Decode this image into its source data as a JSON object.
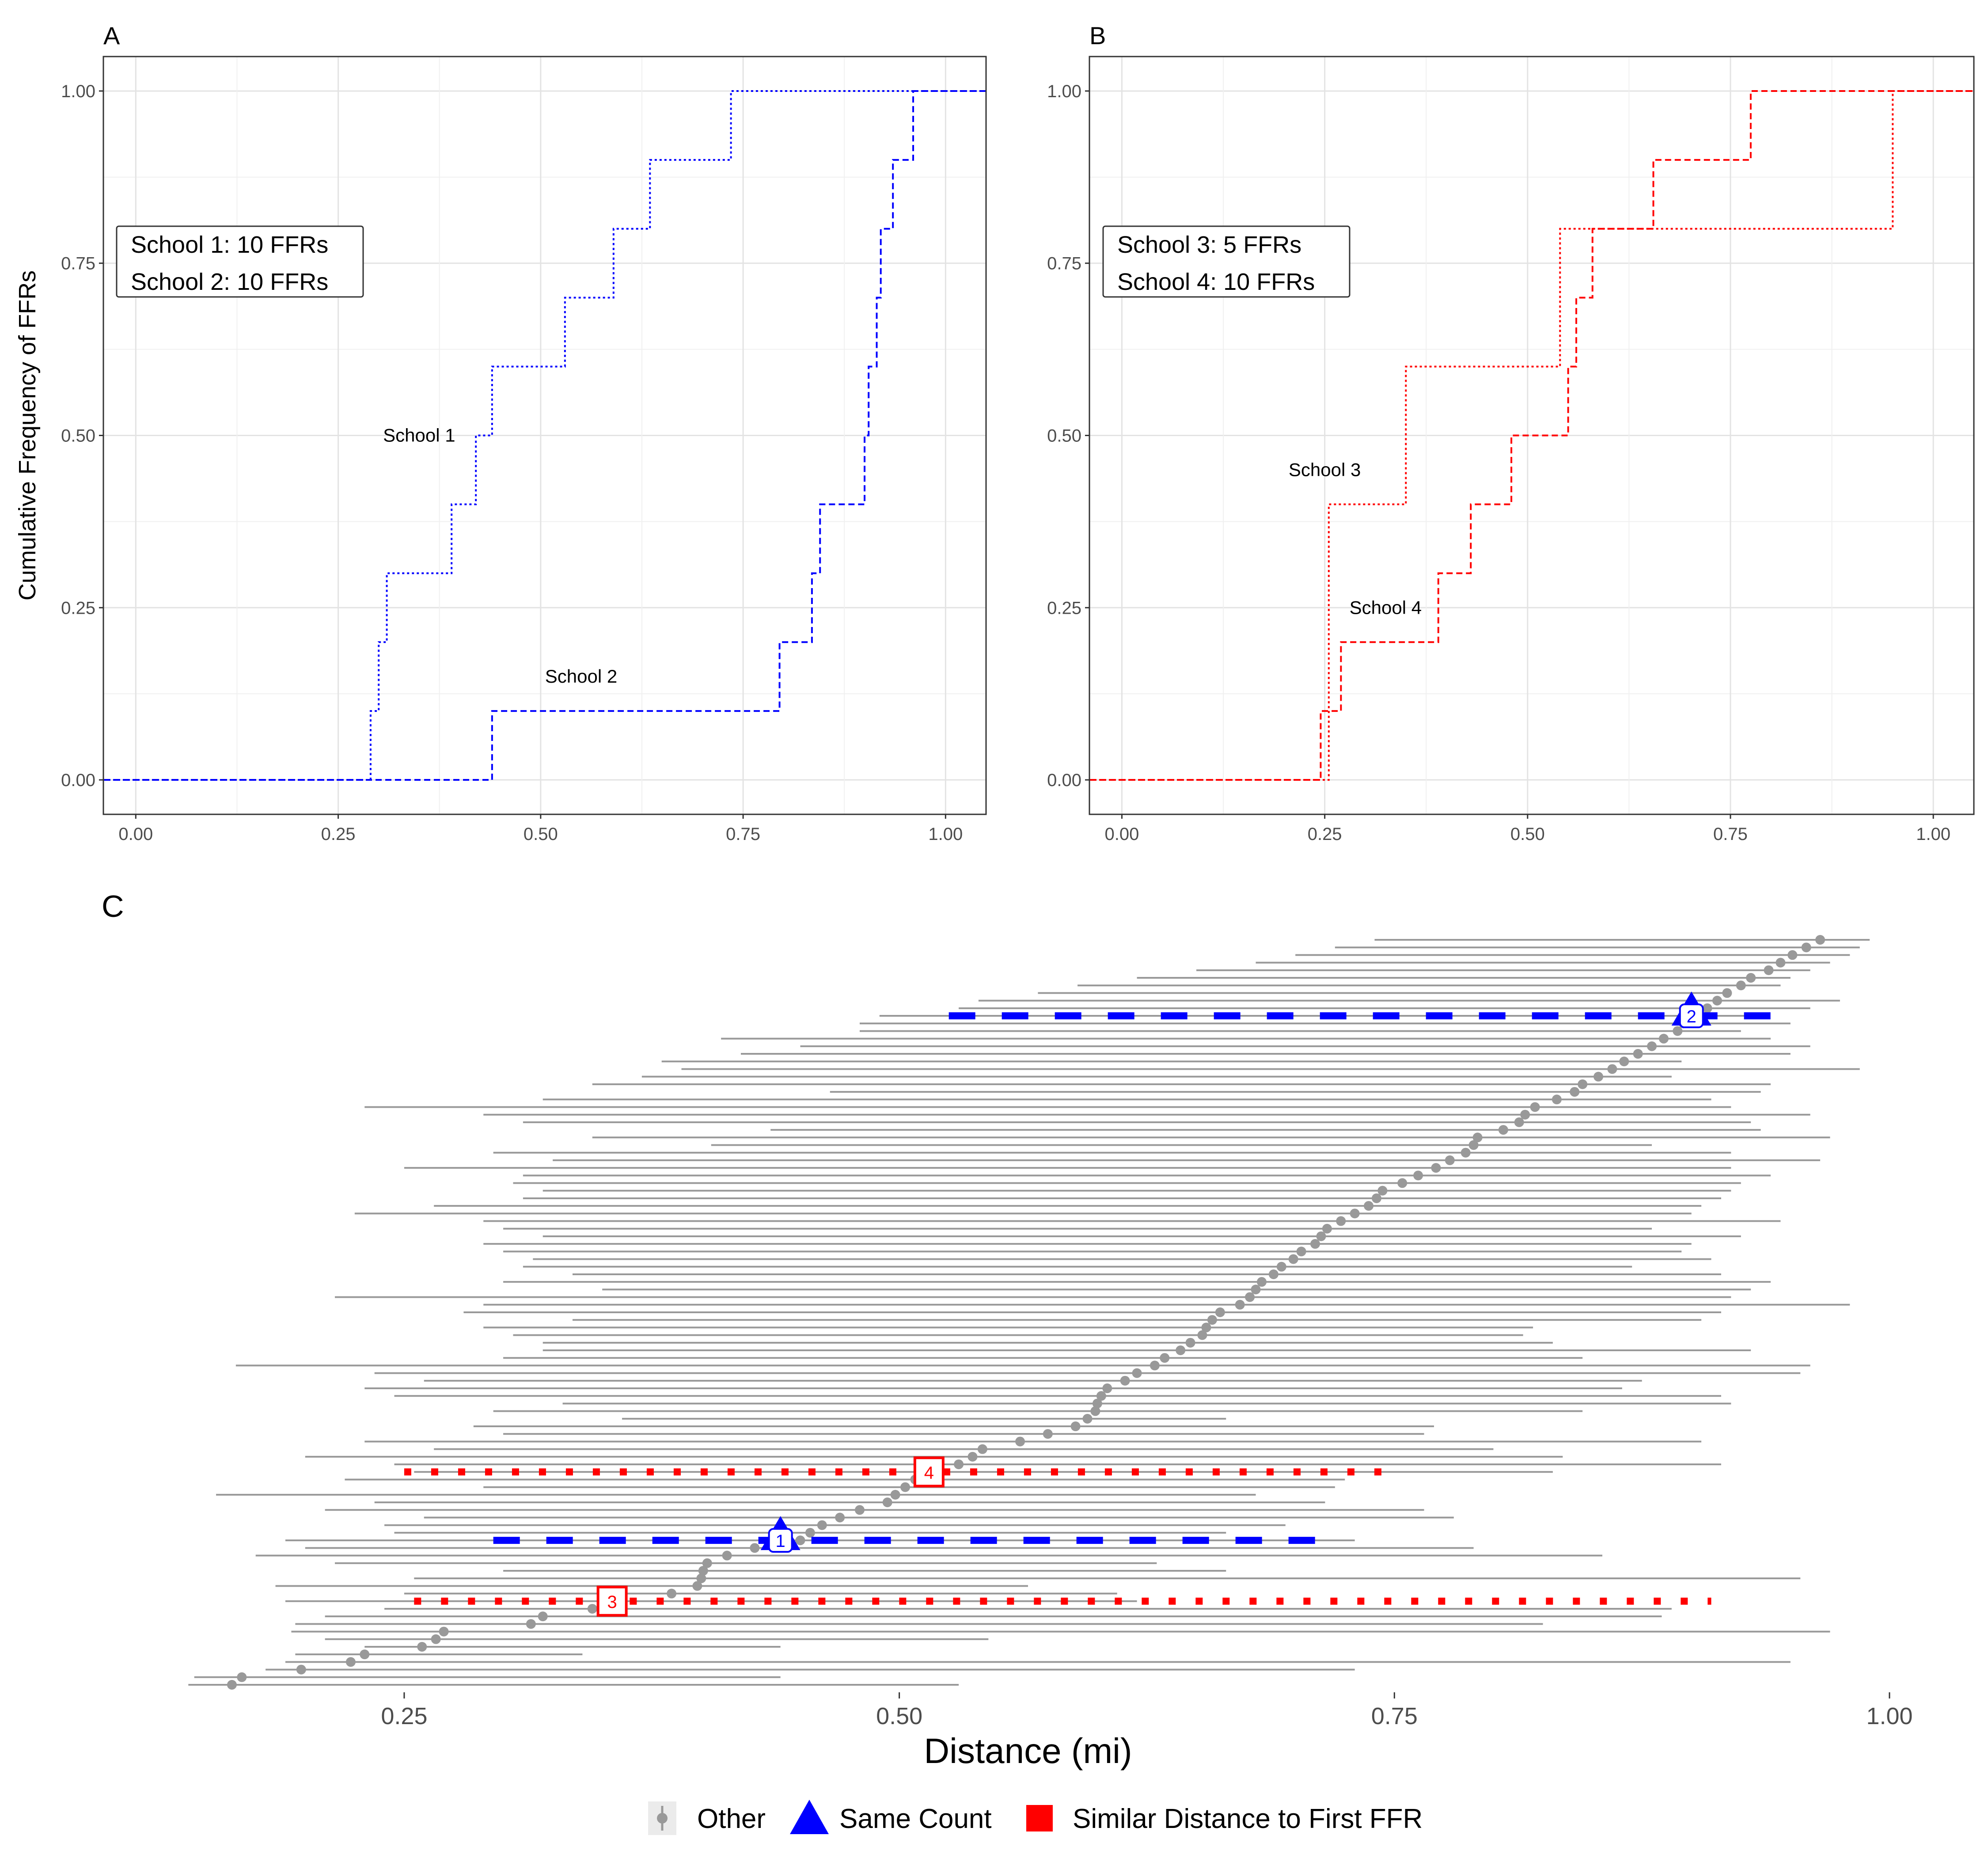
{
  "chart_data": [
    {
      "panel": "A",
      "type": "line",
      "step": true,
      "ylabel": "Cumulative Frequency of FFRs",
      "xlim": [
        -0.04,
        1.05
      ],
      "ylim": [
        -0.05,
        1.05
      ],
      "x_ticks": [
        "0.00",
        "0.25",
        "0.50",
        "0.75",
        "1.00"
      ],
      "y_ticks": [
        "0.00",
        "0.25",
        "0.50",
        "0.75",
        "1.00"
      ],
      "grid": true,
      "legend_box": [
        "School 1: 10 FFRs",
        "School 2: 10 FFRs"
      ],
      "series": [
        {
          "name": "School 1",
          "color": "#0000ff",
          "linestyle": "dotted",
          "x": [
            0.29,
            0.3,
            0.31,
            0.39,
            0.42,
            0.44,
            0.53,
            0.59,
            0.635,
            0.735
          ],
          "y": [
            0.1,
            0.2,
            0.3,
            0.4,
            0.5,
            0.6,
            0.7,
            0.8,
            0.9,
            1.0
          ]
        },
        {
          "name": "School 2",
          "color": "#0000ff",
          "linestyle": "dashed",
          "x": [
            0.44,
            0.795,
            0.835,
            0.845,
            0.9,
            0.905,
            0.915,
            0.92,
            0.935,
            0.96
          ],
          "y": [
            0.1,
            0.2,
            0.3,
            0.4,
            0.5,
            0.6,
            0.7,
            0.8,
            0.9,
            1.0
          ]
        }
      ],
      "annotations": [
        "School 1",
        "School 2"
      ]
    },
    {
      "panel": "B",
      "type": "line",
      "step": true,
      "ylabel": "",
      "xlim": [
        -0.04,
        1.05
      ],
      "ylim": [
        -0.05,
        1.05
      ],
      "x_ticks": [
        "0.00",
        "0.25",
        "0.50",
        "0.75",
        "1.00"
      ],
      "y_ticks": [
        "0.00",
        "0.25",
        "0.50",
        "0.75",
        "1.00"
      ],
      "grid": true,
      "legend_box": [
        "School 3:  5  FFRs",
        "School 4: 10 FFRs"
      ],
      "series": [
        {
          "name": "School 3",
          "color": "#ff0000",
          "linestyle": "dotted",
          "x": [
            0.255,
            0.35,
            0.54,
            0.95
          ],
          "y": [
            0.4,
            0.6,
            0.8,
            1.0
          ]
        },
        {
          "name": "School 4",
          "color": "#ff0000",
          "linestyle": "dashed",
          "x": [
            0.245,
            0.27,
            0.39,
            0.43,
            0.48,
            0.55,
            0.56,
            0.58,
            0.655,
            0.775
          ],
          "y": [
            0.1,
            0.2,
            0.3,
            0.4,
            0.5,
            0.6,
            0.7,
            0.8,
            0.9,
            1.0
          ]
        }
      ],
      "annotations": [
        "School 3",
        "School 4"
      ]
    },
    {
      "panel": "C",
      "type": "scatter",
      "xlabel": "Distance (mi)",
      "xlim": [
        0.13,
        1.0
      ],
      "x_ticks": [
        "0.25",
        "0.50",
        "0.75",
        "1.00"
      ],
      "grid": false,
      "legend": [
        "Other",
        "Same Count",
        "Similar Distance to First FFR"
      ],
      "legend_placement": "bottom",
      "other_color": "#999999",
      "highlighted": [
        {
          "label": "1",
          "group": "Same Count",
          "color": "#0000ff",
          "linestyle": "dashed",
          "center": 0.44,
          "low": 0.295,
          "high": 0.715
        },
        {
          "label": "2",
          "group": "Same Count",
          "color": "#0000ff",
          "linestyle": "dashed",
          "center": 0.9,
          "low": 0.525,
          "high": 0.95
        },
        {
          "label": "3",
          "group": "Similar Distance to First FFR",
          "color": "#ff0000",
          "linestyle": "dotted",
          "center": 0.355,
          "low": 0.255,
          "high": 0.91
        },
        {
          "label": "4",
          "group": "Similar Distance to First FFR",
          "color": "#ff0000",
          "linestyle": "dotted",
          "center": 0.515,
          "low": 0.25,
          "high": 0.745
        }
      ],
      "other_intervals": [
        {
          "c": 0.163,
          "lo": 0.141,
          "hi": 0.53
        },
        {
          "c": 0.168,
          "lo": 0.144,
          "hi": 0.44
        },
        {
          "c": 0.198,
          "lo": 0.18,
          "hi": 0.73
        },
        {
          "c": 0.223,
          "lo": 0.19,
          "hi": 0.95
        },
        {
          "c": 0.23,
          "lo": 0.195,
          "hi": 0.34
        },
        {
          "c": 0.259,
          "lo": 0.23,
          "hi": 0.44
        },
        {
          "c": 0.266,
          "lo": 0.21,
          "hi": 0.545
        },
        {
          "c": 0.27,
          "lo": 0.193,
          "hi": 0.97
        },
        {
          "c": 0.314,
          "lo": 0.195,
          "hi": 0.825
        },
        {
          "c": 0.32,
          "lo": 0.21,
          "hi": 0.885
        },
        {
          "c": 0.345,
          "lo": 0.24,
          "hi": 0.89
        },
        {
          "c": 0.356,
          "lo": 0.19,
          "hi": 0.62
        },
        {
          "c": 0.385,
          "lo": 0.25,
          "hi": 0.61
        },
        {
          "c": 0.398,
          "lo": 0.185,
          "hi": 0.565
        },
        {
          "c": 0.4,
          "lo": 0.255,
          "hi": 0.955
        },
        {
          "c": 0.401,
          "lo": 0.3,
          "hi": 0.665
        },
        {
          "c": 0.403,
          "lo": 0.215,
          "hi": 0.63
        },
        {
          "c": 0.413,
          "lo": 0.175,
          "hi": 0.855
        },
        {
          "c": 0.427,
          "lo": 0.2,
          "hi": 0.79
        },
        {
          "c": 0.45,
          "lo": 0.19,
          "hi": 0.73
        },
        {
          "c": 0.455,
          "lo": 0.245,
          "hi": 0.665
        },
        {
          "c": 0.461,
          "lo": 0.24,
          "hi": 0.695
        },
        {
          "c": 0.47,
          "lo": 0.26,
          "hi": 0.78
        },
        {
          "c": 0.48,
          "lo": 0.21,
          "hi": 0.765
        },
        {
          "c": 0.494,
          "lo": 0.235,
          "hi": 0.715
        },
        {
          "c": 0.498,
          "lo": 0.155,
          "hi": 0.68
        },
        {
          "c": 0.503,
          "lo": 0.29,
          "hi": 0.72
        },
        {
          "c": 0.508,
          "lo": 0.22,
          "hi": 0.725
        },
        {
          "c": 0.521,
          "lo": 0.255,
          "hi": 0.83
        },
        {
          "c": 0.53,
          "lo": 0.245,
          "hi": 0.915
        },
        {
          "c": 0.537,
          "lo": 0.2,
          "hi": 0.835
        },
        {
          "c": 0.542,
          "lo": 0.265,
          "hi": 0.8
        },
        {
          "c": 0.561,
          "lo": 0.23,
          "hi": 0.905
        },
        {
          "c": 0.575,
          "lo": 0.3,
          "hi": 0.765
        },
        {
          "c": 0.589,
          "lo": 0.285,
          "hi": 0.77
        },
        {
          "c": 0.595,
          "lo": 0.36,
          "hi": 0.665
        },
        {
          "c": 0.599,
          "lo": 0.295,
          "hi": 0.845
        },
        {
          "c": 0.6,
          "lo": 0.33,
          "hi": 0.92
        },
        {
          "c": 0.602,
          "lo": 0.245,
          "hi": 0.915
        },
        {
          "c": 0.605,
          "lo": 0.23,
          "hi": 0.865
        },
        {
          "c": 0.614,
          "lo": 0.26,
          "hi": 0.875
        },
        {
          "c": 0.62,
          "lo": 0.235,
          "hi": 0.955
        },
        {
          "c": 0.629,
          "lo": 0.165,
          "hi": 0.96
        },
        {
          "c": 0.634,
          "lo": 0.3,
          "hi": 0.845
        },
        {
          "c": 0.642,
          "lo": 0.32,
          "hi": 0.93
        },
        {
          "c": 0.647,
          "lo": 0.32,
          "hi": 0.83
        },
        {
          "c": 0.653,
          "lo": 0.305,
          "hi": 0.815
        },
        {
          "c": 0.655,
          "lo": 0.29,
          "hi": 0.82
        },
        {
          "c": 0.658,
          "lo": 0.335,
          "hi": 0.905
        },
        {
          "c": 0.662,
          "lo": 0.28,
          "hi": 0.915
        },
        {
          "c": 0.672,
          "lo": 0.29,
          "hi": 0.98
        },
        {
          "c": 0.677,
          "lo": 0.215,
          "hi": 0.92
        },
        {
          "c": 0.68,
          "lo": 0.35,
          "hi": 0.93
        },
        {
          "c": 0.683,
          "lo": 0.3,
          "hi": 0.94
        },
        {
          "c": 0.689,
          "lo": 0.335,
          "hi": 0.915
        },
        {
          "c": 0.693,
          "lo": 0.31,
          "hi": 0.87
        },
        {
          "c": 0.699,
          "lo": 0.315,
          "hi": 0.91
        },
        {
          "c": 0.703,
          "lo": 0.3,
          "hi": 0.895
        },
        {
          "c": 0.71,
          "lo": 0.29,
          "hi": 0.9
        },
        {
          "c": 0.713,
          "lo": 0.32,
          "hi": 0.925
        },
        {
          "c": 0.716,
          "lo": 0.3,
          "hi": 0.88
        },
        {
          "c": 0.723,
          "lo": 0.29,
          "hi": 0.945
        },
        {
          "c": 0.73,
          "lo": 0.225,
          "hi": 0.9
        },
        {
          "c": 0.737,
          "lo": 0.265,
          "hi": 0.905
        },
        {
          "c": 0.741,
          "lo": 0.31,
          "hi": 0.915
        },
        {
          "c": 0.744,
          "lo": 0.32,
          "hi": 0.92
        },
        {
          "c": 0.754,
          "lo": 0.305,
          "hi": 0.925
        },
        {
          "c": 0.762,
          "lo": 0.31,
          "hi": 0.94
        },
        {
          "c": 0.771,
          "lo": 0.25,
          "hi": 0.92
        },
        {
          "c": 0.778,
          "lo": 0.325,
          "hi": 0.965
        },
        {
          "c": 0.786,
          "lo": 0.295,
          "hi": 0.92
        },
        {
          "c": 0.79,
          "lo": 0.405,
          "hi": 0.88
        },
        {
          "c": 0.792,
          "lo": 0.345,
          "hi": 0.97
        },
        {
          "c": 0.805,
          "lo": 0.435,
          "hi": 0.935
        },
        {
          "c": 0.813,
          "lo": 0.31,
          "hi": 0.93
        },
        {
          "c": 0.816,
          "lo": 0.29,
          "hi": 0.96
        },
        {
          "c": 0.821,
          "lo": 0.23,
          "hi": 0.92
        },
        {
          "c": 0.832,
          "lo": 0.32,
          "hi": 0.91
        },
        {
          "c": 0.841,
          "lo": 0.465,
          "hi": 0.935
        },
        {
          "c": 0.845,
          "lo": 0.345,
          "hi": 0.94
        },
        {
          "c": 0.853,
          "lo": 0.37,
          "hi": 0.89
        },
        {
          "c": 0.86,
          "lo": 0.39,
          "hi": 0.985
        },
        {
          "c": 0.866,
          "lo": 0.38,
          "hi": 0.895
        },
        {
          "c": 0.873,
          "lo": 0.42,
          "hi": 0.95
        },
        {
          "c": 0.88,
          "lo": 0.45,
          "hi": 0.96
        },
        {
          "c": 0.886,
          "lo": 0.41,
          "hi": 0.94
        },
        {
          "c": 0.893,
          "lo": 0.48,
          "hi": 0.925
        },
        {
          "c": 0.896,
          "lo": 0.48,
          "hi": 0.95
        },
        {
          "c": 0.902,
          "lo": 0.49,
          "hi": 0.93
        },
        {
          "c": 0.908,
          "lo": 0.53,
          "hi": 0.96
        },
        {
          "c": 0.913,
          "lo": 0.54,
          "hi": 0.975
        },
        {
          "c": 0.918,
          "lo": 0.57,
          "hi": 0.92
        },
        {
          "c": 0.925,
          "lo": 0.59,
          "hi": 0.945
        },
        {
          "c": 0.93,
          "lo": 0.62,
          "hi": 0.95
        },
        {
          "c": 0.939,
          "lo": 0.65,
          "hi": 0.96
        },
        {
          "c": 0.945,
          "lo": 0.68,
          "hi": 0.97
        },
        {
          "c": 0.951,
          "lo": 0.7,
          "hi": 0.98
        },
        {
          "c": 0.958,
          "lo": 0.72,
          "hi": 0.985
        },
        {
          "c": 0.965,
          "lo": 0.74,
          "hi": 0.99
        }
      ]
    }
  ],
  "panel_tags": {
    "a": "A",
    "b": "B",
    "c": "C"
  }
}
